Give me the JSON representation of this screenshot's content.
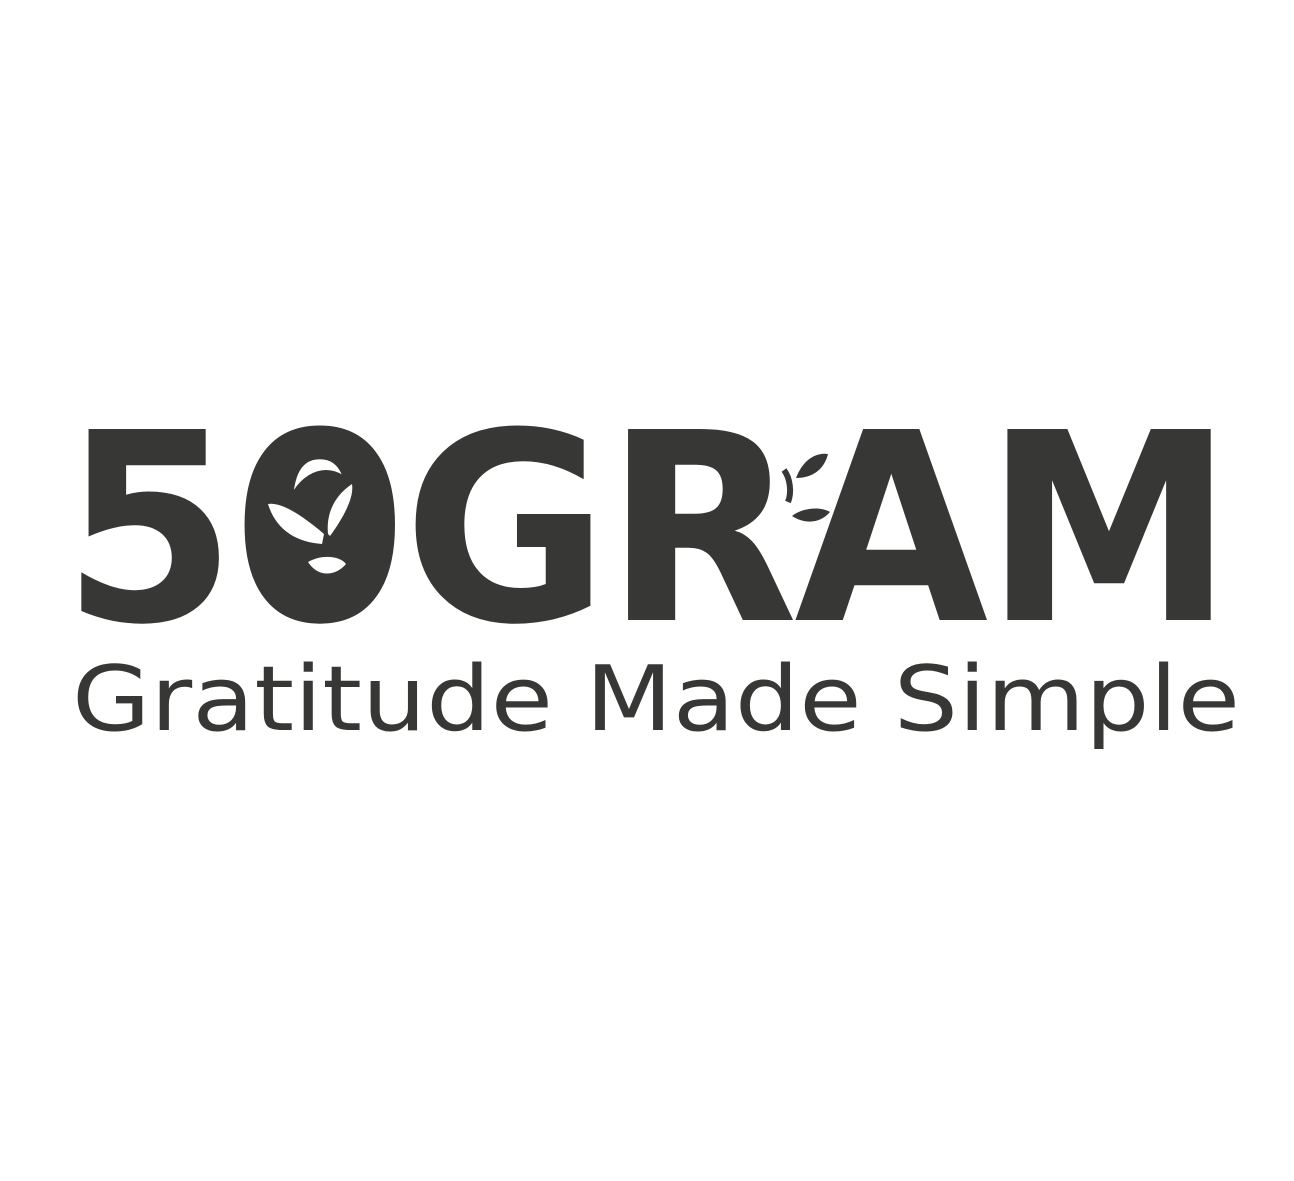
{
  "logo": {
    "brand_name": "50GRAM",
    "tagline": "Gratitude Made Simple",
    "icons": [
      "leaf-sprout-icon",
      "leaf-branch-icon"
    ]
  },
  "colors": {
    "ink": "#373735",
    "background": "#ffffff"
  }
}
